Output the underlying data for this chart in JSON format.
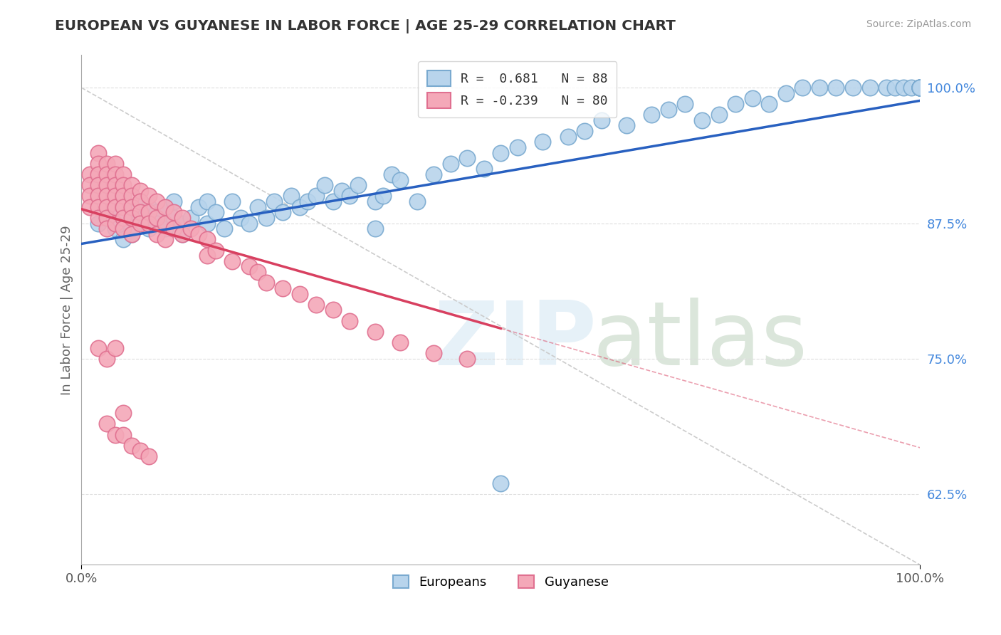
{
  "title": "EUROPEAN VS GUYANESE IN LABOR FORCE | AGE 25-29 CORRELATION CHART",
  "source": "Source: ZipAtlas.com",
  "ylabel": "In Labor Force | Age 25-29",
  "xlim": [
    0.0,
    1.0
  ],
  "ylim": [
    0.56,
    1.03
  ],
  "yticks": [
    0.625,
    0.75,
    0.875,
    1.0
  ],
  "ytick_labels": [
    "62.5%",
    "75.0%",
    "87.5%",
    "100.0%"
  ],
  "xtick_labels": [
    "0.0%",
    "100.0%"
  ],
  "blue_color": "#b8d4ec",
  "blue_edge": "#7aaad0",
  "pink_color": "#f4a8b8",
  "pink_edge": "#e07090",
  "trend_blue": "#2860c0",
  "trend_pink": "#d84060",
  "dash_color": "#cccccc",
  "grid_color": "#dddddd",
  "legend_label_blue": "Europeans",
  "legend_label_pink": "Guyanese",
  "blue_trend_x": [
    0.0,
    1.0
  ],
  "blue_trend_y": [
    0.856,
    0.988
  ],
  "pink_trend_x": [
    0.0,
    0.5
  ],
  "pink_trend_y": [
    0.888,
    0.778
  ],
  "dash_line_x": [
    0.0,
    1.0
  ],
  "dash_line_y": [
    1.0,
    0.56
  ],
  "blue_scatter_x": [
    0.02,
    0.03,
    0.04,
    0.04,
    0.05,
    0.05,
    0.05,
    0.06,
    0.06,
    0.06,
    0.07,
    0.07,
    0.08,
    0.08,
    0.08,
    0.09,
    0.09,
    0.1,
    0.1,
    0.11,
    0.11,
    0.12,
    0.12,
    0.13,
    0.14,
    0.15,
    0.15,
    0.16,
    0.17,
    0.18,
    0.19,
    0.2,
    0.21,
    0.22,
    0.23,
    0.24,
    0.25,
    0.26,
    0.27,
    0.28,
    0.29,
    0.3,
    0.31,
    0.32,
    0.33,
    0.35,
    0.36,
    0.37,
    0.38,
    0.4,
    0.42,
    0.44,
    0.46,
    0.48,
    0.5,
    0.52,
    0.55,
    0.58,
    0.6,
    0.62,
    0.65,
    0.68,
    0.7,
    0.72,
    0.74,
    0.76,
    0.78,
    0.8,
    0.82,
    0.84,
    0.86,
    0.88,
    0.9,
    0.92,
    0.94,
    0.96,
    0.97,
    0.98,
    0.99,
    1.0,
    1.0,
    1.0,
    1.0,
    1.0,
    1.0,
    1.0,
    0.35,
    0.5
  ],
  "blue_scatter_y": [
    0.875,
    0.88,
    0.87,
    0.89,
    0.88,
    0.895,
    0.86,
    0.885,
    0.87,
    0.865,
    0.88,
    0.895,
    0.875,
    0.89,
    0.87,
    0.885,
    0.875,
    0.89,
    0.87,
    0.88,
    0.895,
    0.875,
    0.865,
    0.88,
    0.89,
    0.875,
    0.895,
    0.885,
    0.87,
    0.895,
    0.88,
    0.875,
    0.89,
    0.88,
    0.895,
    0.885,
    0.9,
    0.89,
    0.895,
    0.9,
    0.91,
    0.895,
    0.905,
    0.9,
    0.91,
    0.895,
    0.9,
    0.92,
    0.915,
    0.895,
    0.92,
    0.93,
    0.935,
    0.925,
    0.94,
    0.945,
    0.95,
    0.955,
    0.96,
    0.97,
    0.965,
    0.975,
    0.98,
    0.985,
    0.97,
    0.975,
    0.985,
    0.99,
    0.985,
    0.995,
    1.0,
    1.0,
    1.0,
    1.0,
    1.0,
    1.0,
    1.0,
    1.0,
    1.0,
    1.0,
    1.0,
    1.0,
    1.0,
    1.0,
    1.0,
    1.0,
    0.87,
    0.635
  ],
  "pink_scatter_x": [
    0.01,
    0.01,
    0.01,
    0.01,
    0.02,
    0.02,
    0.02,
    0.02,
    0.02,
    0.02,
    0.02,
    0.03,
    0.03,
    0.03,
    0.03,
    0.03,
    0.03,
    0.03,
    0.04,
    0.04,
    0.04,
    0.04,
    0.04,
    0.04,
    0.05,
    0.05,
    0.05,
    0.05,
    0.05,
    0.05,
    0.06,
    0.06,
    0.06,
    0.06,
    0.06,
    0.07,
    0.07,
    0.07,
    0.07,
    0.08,
    0.08,
    0.08,
    0.09,
    0.09,
    0.09,
    0.1,
    0.1,
    0.1,
    0.11,
    0.11,
    0.12,
    0.12,
    0.13,
    0.14,
    0.15,
    0.15,
    0.16,
    0.18,
    0.2,
    0.21,
    0.22,
    0.24,
    0.26,
    0.28,
    0.3,
    0.32,
    0.35,
    0.38,
    0.42,
    0.46,
    0.02,
    0.03,
    0.04,
    0.05,
    0.03,
    0.04,
    0.05,
    0.06,
    0.07,
    0.08
  ],
  "pink_scatter_y": [
    0.92,
    0.91,
    0.9,
    0.89,
    0.94,
    0.93,
    0.92,
    0.91,
    0.9,
    0.89,
    0.88,
    0.93,
    0.92,
    0.91,
    0.9,
    0.89,
    0.88,
    0.87,
    0.93,
    0.92,
    0.91,
    0.9,
    0.89,
    0.875,
    0.92,
    0.91,
    0.9,
    0.89,
    0.88,
    0.87,
    0.91,
    0.9,
    0.89,
    0.88,
    0.865,
    0.905,
    0.895,
    0.885,
    0.875,
    0.9,
    0.885,
    0.875,
    0.895,
    0.88,
    0.865,
    0.89,
    0.875,
    0.86,
    0.885,
    0.87,
    0.88,
    0.865,
    0.87,
    0.865,
    0.86,
    0.845,
    0.85,
    0.84,
    0.835,
    0.83,
    0.82,
    0.815,
    0.81,
    0.8,
    0.795,
    0.785,
    0.775,
    0.765,
    0.755,
    0.75,
    0.76,
    0.75,
    0.76,
    0.7,
    0.69,
    0.68,
    0.68,
    0.67,
    0.665,
    0.66
  ]
}
